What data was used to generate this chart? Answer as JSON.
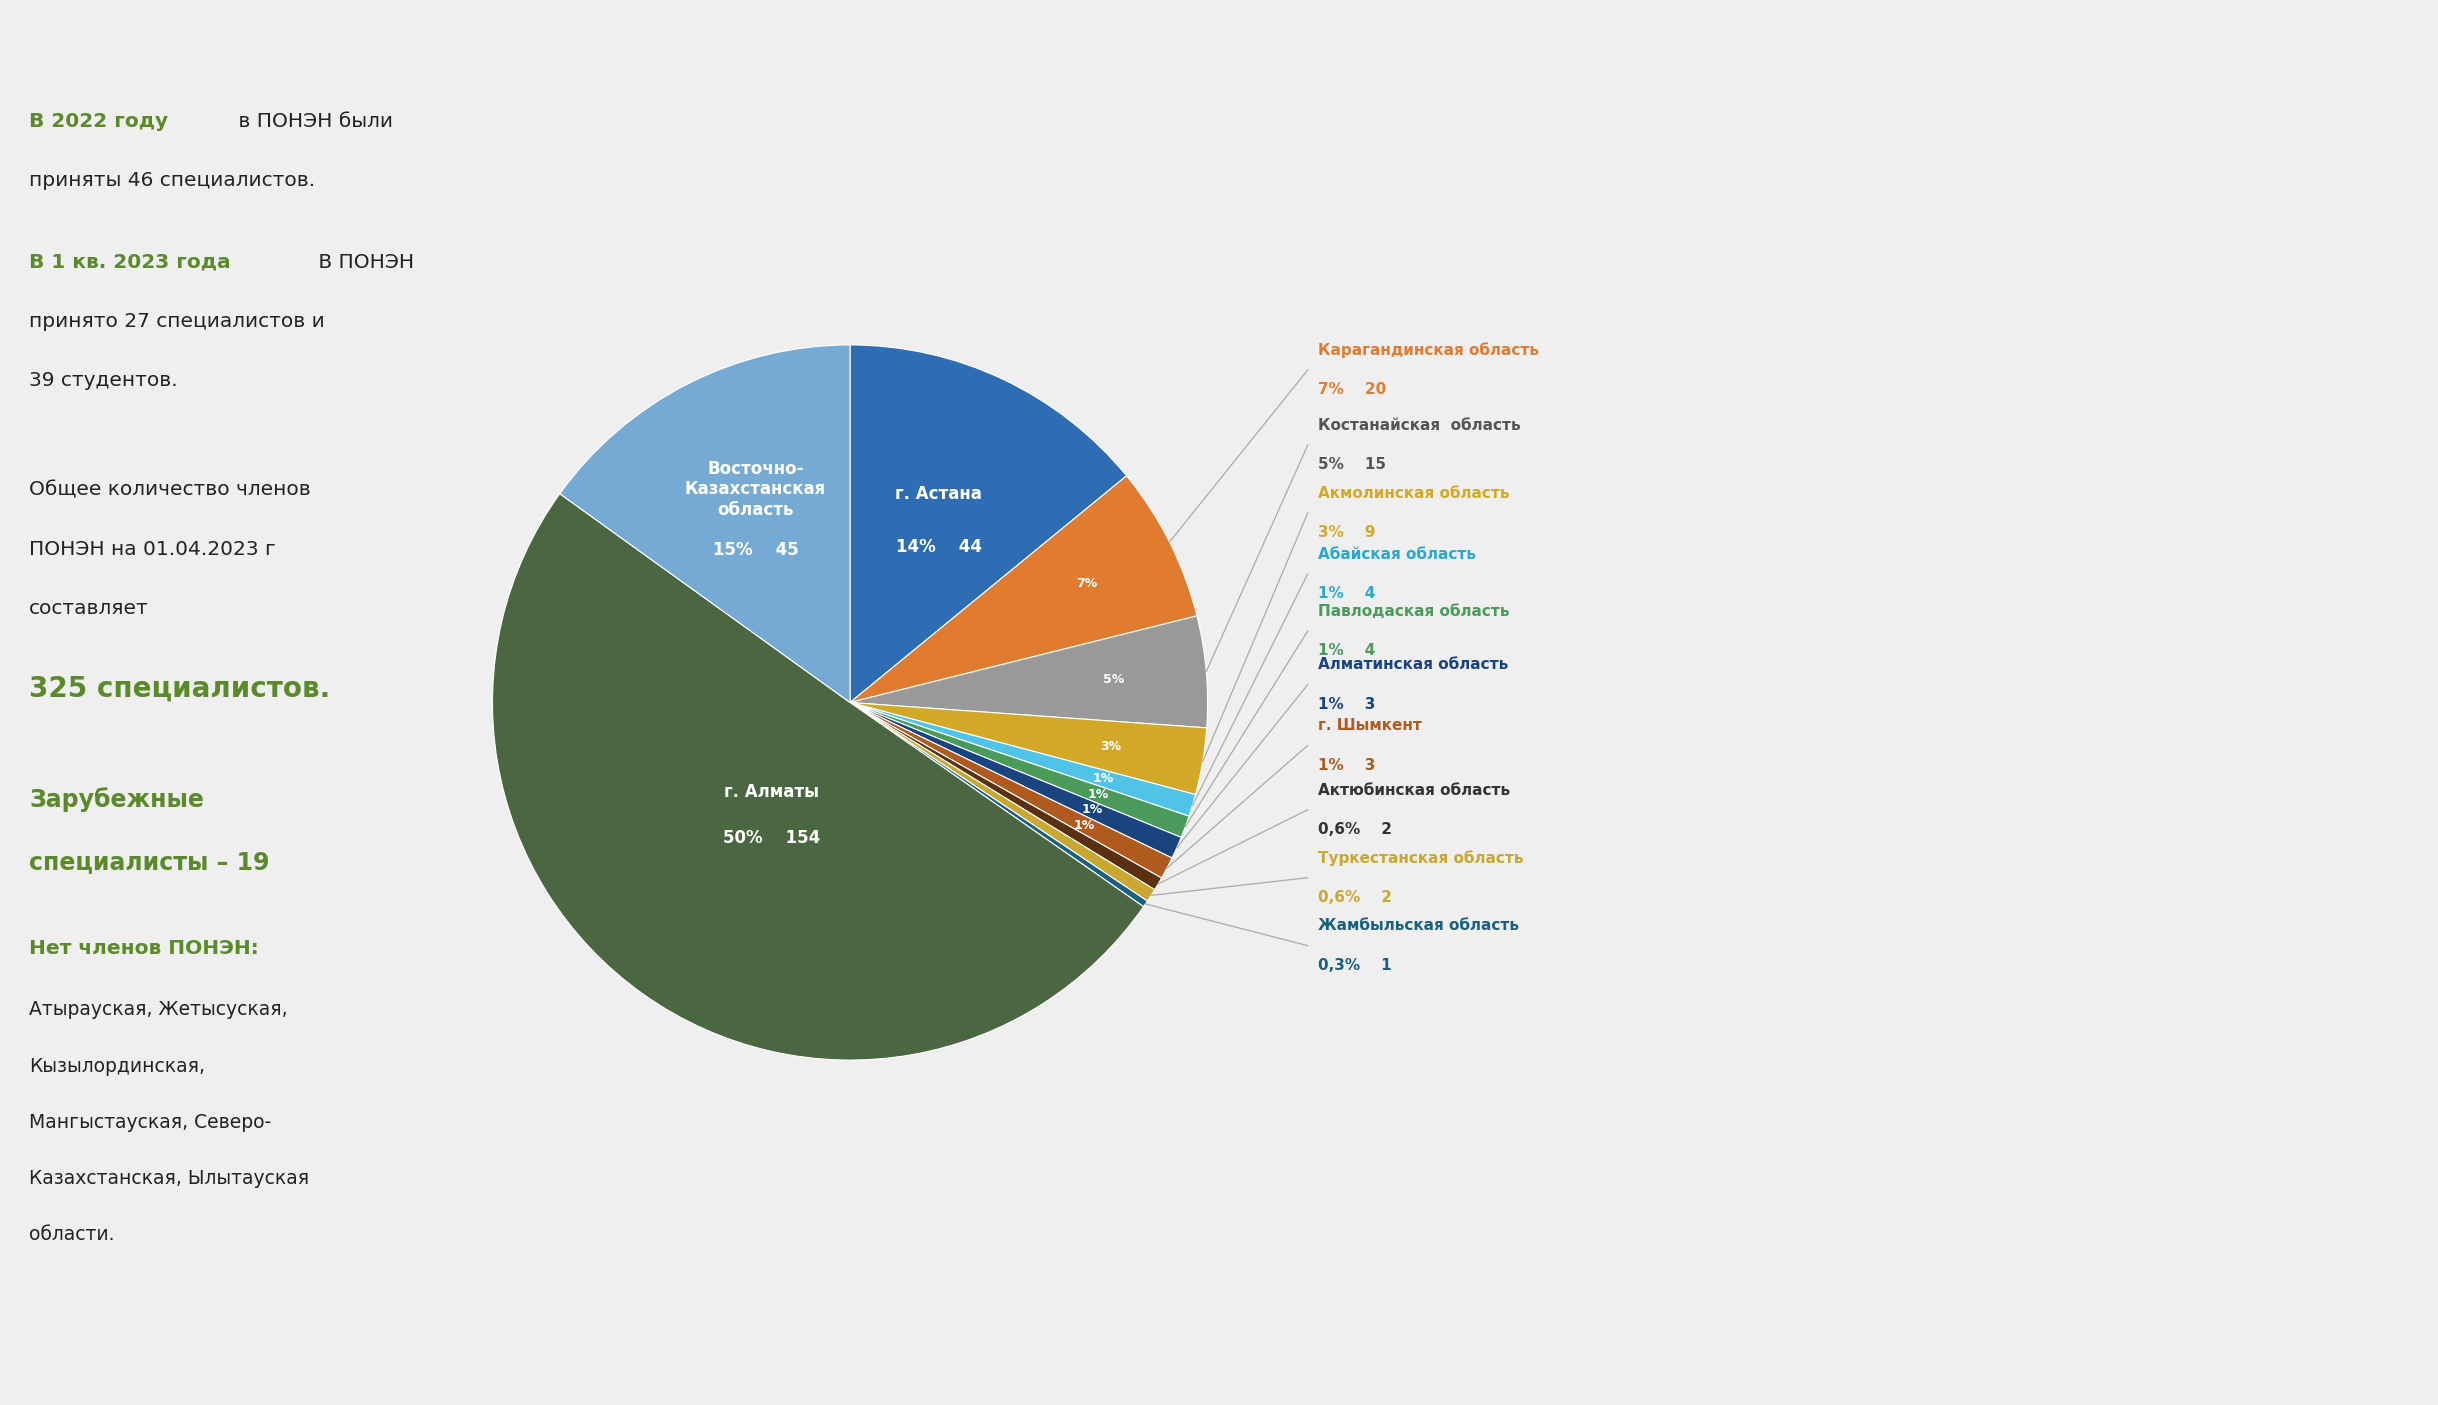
{
  "slices": [
    {
      "label": "г. Астана",
      "pct": 14,
      "count": 44,
      "color": "#2e6db4",
      "inside": true
    },
    {
      "label": "Карагандинская область",
      "pct": 7,
      "count": 20,
      "color": "#e07b30",
      "inside": false
    },
    {
      "label": "Костанайская область",
      "pct": 5,
      "count": 15,
      "color": "#999999",
      "inside": false
    },
    {
      "label": "Акмолинская область",
      "pct": 3,
      "count": 9,
      "color": "#d4a827",
      "inside": false
    },
    {
      "label": "Абайская область",
      "pct": 1,
      "count": 4,
      "color": "#4fc3e8",
      "inside": false
    },
    {
      "label": "Павлодаская область",
      "pct": 1,
      "count": 4,
      "color": "#4a9a5a",
      "inside": false
    },
    {
      "label": "Алматинская область",
      "pct": 1,
      "count": 3,
      "color": "#1a4480",
      "inside": false
    },
    {
      "label": "г. Шымкент",
      "pct": 1,
      "count": 3,
      "color": "#b05a20",
      "inside": false
    },
    {
      "label": "Актюбинская область",
      "pct": 0.6,
      "count": 2,
      "color": "#5a3010",
      "inside": false
    },
    {
      "label": "Туркестанская область",
      "pct": 0.6,
      "count": 2,
      "color": "#c8a830",
      "inside": false
    },
    {
      "label": "Жамбыльская область",
      "pct": 0.3,
      "count": 1,
      "color": "#1a6080",
      "inside": false
    },
    {
      "label": "г. Алматы",
      "pct": 50,
      "count": 154,
      "color": "#4a6741",
      "inside": true
    },
    {
      "label": "Восточно-\nКазахстанская\nобласть",
      "pct": 15,
      "count": 45,
      "color": "#74aad4",
      "inside": true
    }
  ],
  "right_labels": [
    {
      "name": "Карагандинская область",
      "pct": "7%",
      "count": "20",
      "name_color": "#e07b30",
      "pct_color": "#e07b30"
    },
    {
      "name": "Костанайская  область",
      "pct": "5%",
      "count": "15",
      "name_color": "#555555",
      "pct_color": "#555555"
    },
    {
      "name": "Акмолинская область",
      "pct": "3%",
      "count": "9",
      "name_color": "#d4a827",
      "pct_color": "#d4a827"
    },
    {
      "name": "Абайская область",
      "pct": "1%",
      "count": "4",
      "name_color": "#29a9d0",
      "pct_color": "#29a9d0"
    },
    {
      "name": "Павлодаская область",
      "pct": "1%",
      "count": "4",
      "name_color": "#4a9a5a",
      "pct_color": "#4a9a5a"
    },
    {
      "name": "Алматинская область",
      "pct": "1%",
      "count": "3",
      "name_color": "#1a4480",
      "pct_color": "#1a4480"
    },
    {
      "name": "г. Шымкент",
      "pct": "1%",
      "count": "3",
      "name_color": "#b05a20",
      "pct_color": "#b05a20"
    },
    {
      "name": "Актюбинская область",
      "pct": "0,6%",
      "count": "2",
      "name_color": "#333333",
      "pct_color": "#333333"
    },
    {
      "name": "Туркестанская область",
      "pct": "0,6%",
      "count": "2",
      "name_color": "#c8a830",
      "pct_color": "#c8a830"
    },
    {
      "name": "Жамбыльская область",
      "pct": "0,3%",
      "count": "1",
      "name_color": "#1a6080",
      "pct_color": "#1a6080"
    }
  ],
  "background_color": "#efefef"
}
